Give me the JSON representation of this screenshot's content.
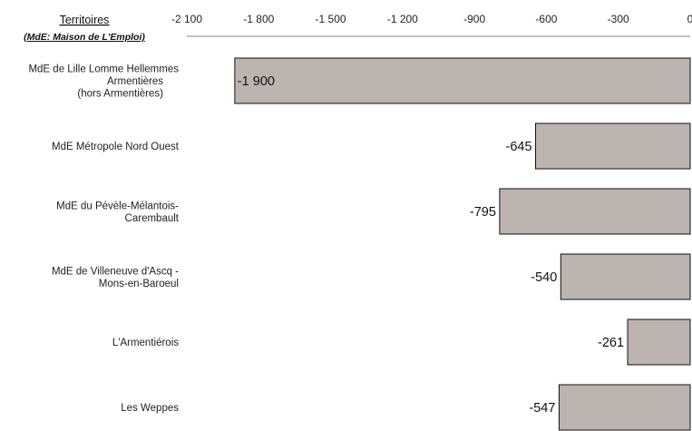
{
  "chart_data": {
    "type": "bar",
    "orientation": "horizontal",
    "header": {
      "title": "Territoires",
      "subtitle": "(MdE: Maison de L'Emploi)"
    },
    "categories": [
      [
        "MdE de Lille Lomme Hellemmes",
        "Armentières",
        "(hors Armentières)"
      ],
      [
        "MdE Métropole Nord Ouest"
      ],
      [
        "MdE du Pévèle-Mélantois-",
        "Carembault"
      ],
      [
        "MdE de Villeneuve d'Ascq -",
        "Mons-en-Baroeul"
      ],
      [
        "L'Armentiérois"
      ],
      [
        "Les Weppes"
      ]
    ],
    "values": [
      -1900,
      -645,
      -795,
      -540,
      -261,
      -547
    ],
    "value_labels": [
      "-1 900",
      "-645",
      "-795",
      "-540",
      "-261",
      "-547"
    ],
    "xlim": [
      -2100,
      0
    ],
    "ticks": [
      -2100,
      -1800,
      -1500,
      -1200,
      -900,
      -600,
      -300,
      0
    ],
    "tick_labels": [
      "-2 100",
      "-1 800",
      "-1 500",
      "-1 200",
      "-900",
      "-600",
      "-300",
      "0"
    ],
    "axis_position": "top",
    "grid": false,
    "bar_color": "#bcb4b1"
  }
}
